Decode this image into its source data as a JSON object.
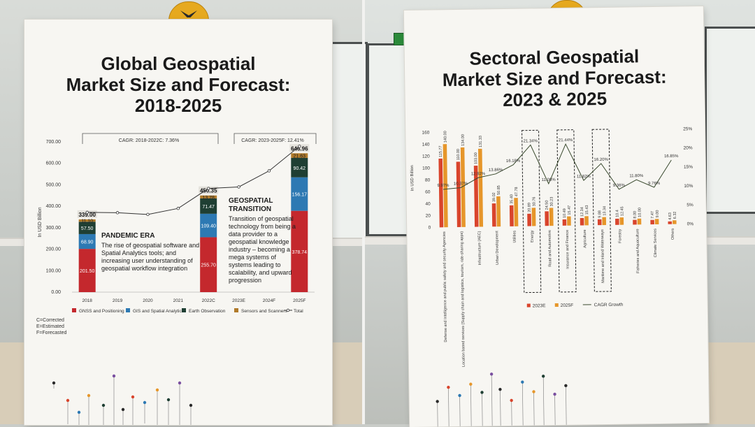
{
  "colors": {
    "gnss": "#c4282d",
    "gis": "#2d79b3",
    "earth": "#1f3f33",
    "sensors": "#b07a2a",
    "total_line": "#333333",
    "bar_2023e": "#d9442c",
    "bar_2025f": "#e6962a",
    "cagr_line": "#3a4a2e",
    "poster_bg": "#f7f6f2",
    "mount": "#e6a91f"
  },
  "left_poster": {
    "title_lines": [
      "Global Geospatial",
      "Market Size and Forecast:",
      "2018-2025"
    ],
    "cagr_box_1": "CAGR: 2018-2022C: 7.36%",
    "cagr_box_2": "CAGR: 2023-2025F: 12.41%",
    "ylabel": "In USD Billion",
    "pandemic": {
      "heading": "PANDEMIC ERA",
      "body": "The rise of geospatial software and Spatial Analytics tools; and increasing user understanding of geospatial workflow integration"
    },
    "transition": {
      "heading": "GEOSPATIAL TRANSITION",
      "body": "Transition of geospatial technology from being a data provider to a geospatial knowledge industry – becoming a mega systems of systems leading to scalability, and upward progression"
    },
    "footnote": [
      "C=Corrected",
      "E=Estimated",
      "F=Forecasted"
    ]
  },
  "right_poster": {
    "title_lines": [
      "Sectoral Geospatial",
      "Market Size and Forecast:",
      "2023 & 2025"
    ],
    "ylabel": "In USD Billion"
  },
  "chart_data": [
    {
      "type": "bar",
      "stacked": true,
      "categories": [
        "2018",
        "2019",
        "2020",
        "2021",
        "2022C",
        "2023E",
        "2024F",
        "2025F"
      ],
      "ylabel": "In USD Billion",
      "ylim": [
        0,
        700
      ],
      "yticks": [
        "0.00",
        "100.00",
        "200.00",
        "300.00",
        "400.00",
        "500.00",
        "600.00",
        "700.00"
      ],
      "series": [
        {
          "name": "GNSS and Positioning",
          "values": [
            201.5,
            null,
            null,
            null,
            255.7,
            null,
            null,
            378.74
          ],
          "labels": [
            "201.50",
            null,
            null,
            null,
            "255.70",
            null,
            null,
            "378.74"
          ]
        },
        {
          "name": "GIS and Spatial Analytics",
          "values": [
            68.9,
            null,
            null,
            null,
            109.4,
            null,
            null,
            156.17
          ],
          "labels": [
            "68.90",
            null,
            null,
            null,
            "109.40",
            null,
            null,
            "156.17"
          ]
        },
        {
          "name": "Earth Observation",
          "values": [
            57.5,
            null,
            null,
            null,
            71.47,
            null,
            null,
            90.42
          ],
          "labels": [
            "57.50",
            null,
            null,
            null,
            "71.47",
            null,
            null,
            "90.42"
          ]
        },
        {
          "name": "Sensors and Scanners",
          "values": [
            11.1,
            null,
            null,
            null,
            13.78,
            null,
            null,
            21.63
          ],
          "labels": [
            "11.10",
            null,
            null,
            null,
            "13.78",
            null,
            null,
            "21.63"
          ]
        }
      ],
      "total": {
        "name": "Total",
        "values": [
          339.0,
          370,
          362,
          390,
          450.35,
          490,
          565,
          646.96
        ],
        "labels": [
          "339.00",
          null,
          null,
          null,
          "450.35",
          null,
          null,
          "646.96"
        ]
      },
      "legend": [
        "GNSS and Positioning",
        "GIS and Spatial Analytics",
        "Earth Observation",
        "Sensors and Scanners",
        "Total"
      ],
      "legend_position": "bottom"
    },
    {
      "type": "bar",
      "categories": [
        "Defense and Intelligence and public safety and security Agencies",
        "Location based services (Supply chain and logistics, tourism, ride-sharing apps)",
        "Infrastructure (AEC)",
        "Urban Development",
        "Utilities",
        "Energy",
        "Road and Automotive",
        "Insurance and Finance",
        "Agriculture",
        "Maritime and Inland Waterways",
        "Forestry",
        "Fisheries and Aquaculture",
        "Climate Services",
        "Others"
      ],
      "ylabel": "In USD Billion",
      "ylim": [
        0,
        160
      ],
      "yticks": [
        "0",
        "20",
        "40",
        "60",
        "80",
        "100",
        "120",
        "140",
        "160"
      ],
      "y2lim": [
        0,
        25
      ],
      "y2ticks": [
        "0%",
        "5%",
        "10%",
        "15%",
        "20%",
        "25%"
      ],
      "series": [
        {
          "name": "2023E",
          "values": [
            115.77,
            110.0,
            103.0,
            39.02,
            35.4,
            20.89,
            24.5,
            10.49,
            12.34,
            9.88,
            10.4,
            8.0,
            7.47,
            4.63
          ]
        },
        {
          "name": "2025F",
          "values": [
            140.0,
            134.0,
            131.33,
            50.85,
            47.78,
            30.76,
            30.23,
            15.47,
            15.43,
            13.34,
            12.45,
            10.0,
            9.0,
            6.32
          ]
        },
        {
          "name": "CAGR Growth",
          "axis": "secondary",
          "values": [
            9.97,
            10.37,
            12.92,
            13.86,
            16.18,
            21.34,
            11.08,
            21.44,
            11.82,
            16.2,
            9.36,
            11.8,
            9.76,
            16.85
          ]
        }
      ],
      "bar_labels_2023e": [
        "115.77",
        "110.00",
        "103.00",
        "39.02",
        "35.40",
        "20.89",
        "24.50",
        "10.49",
        "12.34",
        "9.88",
        "10.4",
        "8.00",
        "7.47",
        "4.63"
      ],
      "bar_labels_2025f": [
        "140.00",
        "134.00",
        "131.33",
        "50.85",
        "47.78",
        "30.76",
        "30.23",
        "15.47",
        "15.43",
        "13.34",
        "12.45",
        "10.00",
        "9.00",
        "6.32"
      ],
      "cagr_labels": [
        "9.97%",
        "10.37%",
        "12.92%",
        "13.86%",
        "16.18%",
        "21.34%",
        "11.08%",
        "21.44%",
        "11.82%",
        "16.20%",
        "9.36%",
        "11.80%",
        "9.76%",
        "16.85%"
      ],
      "highlighted": [
        "Energy",
        "Insurance and Finance",
        "Maritime and Inland Waterways"
      ],
      "legend": [
        "2023E",
        "2025F",
        "CAGR Growth"
      ],
      "legend_position": "bottom"
    }
  ]
}
